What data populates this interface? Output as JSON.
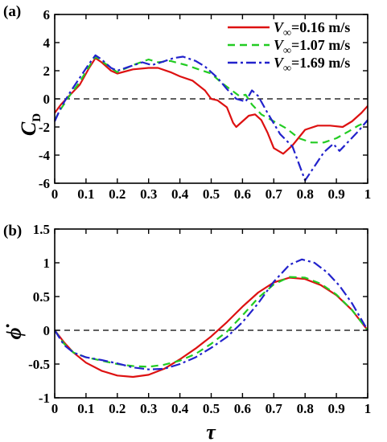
{
  "chart_data": [
    {
      "type": "line",
      "panel_label": "(a)",
      "ylabel": "C",
      "ylabel_sub": "D",
      "xlabel": "",
      "xlim": [
        0,
        1
      ],
      "ylim": [
        -6,
        6
      ],
      "xticks": [
        "0",
        "0.1",
        "0.2",
        "0.3",
        "0.4",
        "0.5",
        "0.6",
        "0.7",
        "0.8",
        "0.9",
        "1"
      ],
      "yticks": [
        "6",
        "4",
        "2",
        "0",
        "-2",
        "-4",
        "-6"
      ],
      "zero_line": true,
      "legend_position": "top-right",
      "series": [
        {
          "name": "V∞=0.16 m/s",
          "legend_symbol": "V",
          "legend_subscript": "∞",
          "legend_rest": "=0.16 m/s",
          "color": "#dd1111",
          "dash": "",
          "points": [
            [
              0,
              -1.0
            ],
            [
              0.02,
              -0.4
            ],
            [
              0.05,
              0.3
            ],
            [
              0.08,
              1.0
            ],
            [
              0.11,
              2.2
            ],
            [
              0.13,
              2.9
            ],
            [
              0.15,
              2.6
            ],
            [
              0.18,
              2.0
            ],
            [
              0.2,
              1.8
            ],
            [
              0.25,
              2.1
            ],
            [
              0.3,
              2.2
            ],
            [
              0.33,
              2.2
            ],
            [
              0.37,
              1.9
            ],
            [
              0.4,
              1.6
            ],
            [
              0.44,
              1.3
            ],
            [
              0.48,
              0.6
            ],
            [
              0.5,
              0.0
            ],
            [
              0.52,
              -0.1
            ],
            [
              0.55,
              -0.6
            ],
            [
              0.57,
              -1.7
            ],
            [
              0.58,
              -2.0
            ],
            [
              0.6,
              -1.6
            ],
            [
              0.62,
              -1.2
            ],
            [
              0.64,
              -1.1
            ],
            [
              0.66,
              -1.5
            ],
            [
              0.68,
              -2.4
            ],
            [
              0.7,
              -3.5
            ],
            [
              0.73,
              -3.9
            ],
            [
              0.76,
              -3.3
            ],
            [
              0.8,
              -2.2
            ],
            [
              0.84,
              -1.9
            ],
            [
              0.88,
              -1.9
            ],
            [
              0.92,
              -2.0
            ],
            [
              0.95,
              -1.6
            ],
            [
              0.98,
              -1.0
            ],
            [
              1.0,
              -0.5
            ]
          ]
        },
        {
          "name": "V∞=1.07 m/s",
          "legend_symbol": "V",
          "legend_subscript": "∞",
          "legend_rest": "=1.07 m/s",
          "color": "#22cc22",
          "dash": "9,6",
          "points": [
            [
              0,
              -1.5
            ],
            [
              0.02,
              -0.7
            ],
            [
              0.05,
              0.3
            ],
            [
              0.08,
              1.2
            ],
            [
              0.11,
              2.3
            ],
            [
              0.13,
              3.0
            ],
            [
              0.15,
              2.7
            ],
            [
              0.18,
              2.2
            ],
            [
              0.2,
              1.9
            ],
            [
              0.25,
              2.4
            ],
            [
              0.3,
              2.8
            ],
            [
              0.33,
              2.6
            ],
            [
              0.37,
              2.7
            ],
            [
              0.42,
              2.4
            ],
            [
              0.46,
              2.1
            ],
            [
              0.5,
              1.8
            ],
            [
              0.53,
              1.2
            ],
            [
              0.56,
              0.7
            ],
            [
              0.59,
              0.2
            ],
            [
              0.61,
              0.3
            ],
            [
              0.63,
              -0.4
            ],
            [
              0.66,
              -1.1
            ],
            [
              0.7,
              -1.6
            ],
            [
              0.74,
              -2.1
            ],
            [
              0.78,
              -2.8
            ],
            [
              0.82,
              -3.1
            ],
            [
              0.86,
              -3.1
            ],
            [
              0.9,
              -2.8
            ],
            [
              0.94,
              -2.3
            ],
            [
              0.97,
              -1.9
            ],
            [
              1.0,
              -1.6
            ]
          ]
        },
        {
          "name": "V∞=1.69 m/s",
          "legend_symbol": "V",
          "legend_subscript": "∞",
          "legend_rest": "=1.69 m/s",
          "color": "#2222cc",
          "dash": "12,4,3,4",
          "points": [
            [
              0,
              -1.6
            ],
            [
              0.02,
              -0.6
            ],
            [
              0.05,
              0.5
            ],
            [
              0.08,
              1.5
            ],
            [
              0.11,
              2.5
            ],
            [
              0.13,
              3.1
            ],
            [
              0.15,
              2.8
            ],
            [
              0.18,
              2.2
            ],
            [
              0.2,
              2.0
            ],
            [
              0.24,
              2.3
            ],
            [
              0.28,
              2.6
            ],
            [
              0.31,
              2.4
            ],
            [
              0.34,
              2.6
            ],
            [
              0.38,
              2.9
            ],
            [
              0.41,
              3.0
            ],
            [
              0.45,
              2.7
            ],
            [
              0.48,
              2.3
            ],
            [
              0.52,
              1.5
            ],
            [
              0.55,
              0.7
            ],
            [
              0.58,
              0.0
            ],
            [
              0.61,
              -0.2
            ],
            [
              0.63,
              0.6
            ],
            [
              0.65,
              0.2
            ],
            [
              0.68,
              -1.0
            ],
            [
              0.72,
              -2.5
            ],
            [
              0.76,
              -3.4
            ],
            [
              0.8,
              -5.8
            ],
            [
              0.83,
              -4.8
            ],
            [
              0.86,
              -3.8
            ],
            [
              0.89,
              -3.2
            ],
            [
              0.91,
              -3.7
            ],
            [
              0.94,
              -3.0
            ],
            [
              0.97,
              -2.3
            ],
            [
              1.0,
              -1.5
            ]
          ]
        }
      ]
    },
    {
      "type": "line",
      "panel_label": "(b)",
      "ylabel": "ϕ̇",
      "xlabel": "τ",
      "xlim": [
        0,
        1
      ],
      "ylim": [
        -1,
        1.5
      ],
      "xticks": [
        "0",
        "0.1",
        "0.2",
        "0.3",
        "0.4",
        "0.5",
        "0.6",
        "0.7",
        "0.8",
        "0.9",
        "1"
      ],
      "yticks": [
        "1.5",
        "1",
        "0.5",
        "0",
        "-0.5",
        "-1"
      ],
      "zero_line": true,
      "series": [
        {
          "name": "V∞=0.16 m/s",
          "color": "#dd1111",
          "dash": "",
          "points": [
            [
              0,
              0.0
            ],
            [
              0.03,
              -0.18
            ],
            [
              0.06,
              -0.33
            ],
            [
              0.1,
              -0.48
            ],
            [
              0.15,
              -0.6
            ],
            [
              0.2,
              -0.67
            ],
            [
              0.25,
              -0.69
            ],
            [
              0.3,
              -0.66
            ],
            [
              0.35,
              -0.57
            ],
            [
              0.4,
              -0.43
            ],
            [
              0.45,
              -0.27
            ],
            [
              0.5,
              -0.09
            ],
            [
              0.55,
              0.12
            ],
            [
              0.6,
              0.35
            ],
            [
              0.65,
              0.56
            ],
            [
              0.7,
              0.71
            ],
            [
              0.75,
              0.78
            ],
            [
              0.8,
              0.76
            ],
            [
              0.85,
              0.67
            ],
            [
              0.9,
              0.52
            ],
            [
              0.95,
              0.3
            ],
            [
              1.0,
              0.0
            ]
          ]
        },
        {
          "name": "V∞=1.07 m/s",
          "color": "#22cc22",
          "dash": "9,6",
          "points": [
            [
              0,
              0.0
            ],
            [
              0.03,
              -0.2
            ],
            [
              0.06,
              -0.33
            ],
            [
              0.1,
              -0.4
            ],
            [
              0.15,
              -0.45
            ],
            [
              0.2,
              -0.5
            ],
            [
              0.25,
              -0.53
            ],
            [
              0.3,
              -0.54
            ],
            [
              0.35,
              -0.51
            ],
            [
              0.4,
              -0.45
            ],
            [
              0.45,
              -0.35
            ],
            [
              0.5,
              -0.2
            ],
            [
              0.55,
              -0.02
            ],
            [
              0.6,
              0.22
            ],
            [
              0.65,
              0.48
            ],
            [
              0.7,
              0.68
            ],
            [
              0.75,
              0.79
            ],
            [
              0.8,
              0.78
            ],
            [
              0.85,
              0.69
            ],
            [
              0.9,
              0.53
            ],
            [
              0.95,
              0.3
            ],
            [
              1.0,
              0.0
            ]
          ]
        },
        {
          "name": "V∞=1.69 m/s",
          "color": "#2222cc",
          "dash": "12,4,3,4",
          "points": [
            [
              0,
              0.0
            ],
            [
              0.03,
              -0.22
            ],
            [
              0.06,
              -0.33
            ],
            [
              0.1,
              -0.4
            ],
            [
              0.15,
              -0.44
            ],
            [
              0.2,
              -0.49
            ],
            [
              0.25,
              -0.55
            ],
            [
              0.3,
              -0.58
            ],
            [
              0.35,
              -0.57
            ],
            [
              0.4,
              -0.5
            ],
            [
              0.45,
              -0.4
            ],
            [
              0.5,
              -0.26
            ],
            [
              0.55,
              -0.1
            ],
            [
              0.6,
              0.12
            ],
            [
              0.65,
              0.4
            ],
            [
              0.7,
              0.72
            ],
            [
              0.75,
              0.97
            ],
            [
              0.79,
              1.05
            ],
            [
              0.83,
              1.0
            ],
            [
              0.87,
              0.86
            ],
            [
              0.91,
              0.66
            ],
            [
              0.95,
              0.4
            ],
            [
              1.0,
              0.0
            ]
          ]
        }
      ]
    }
  ]
}
